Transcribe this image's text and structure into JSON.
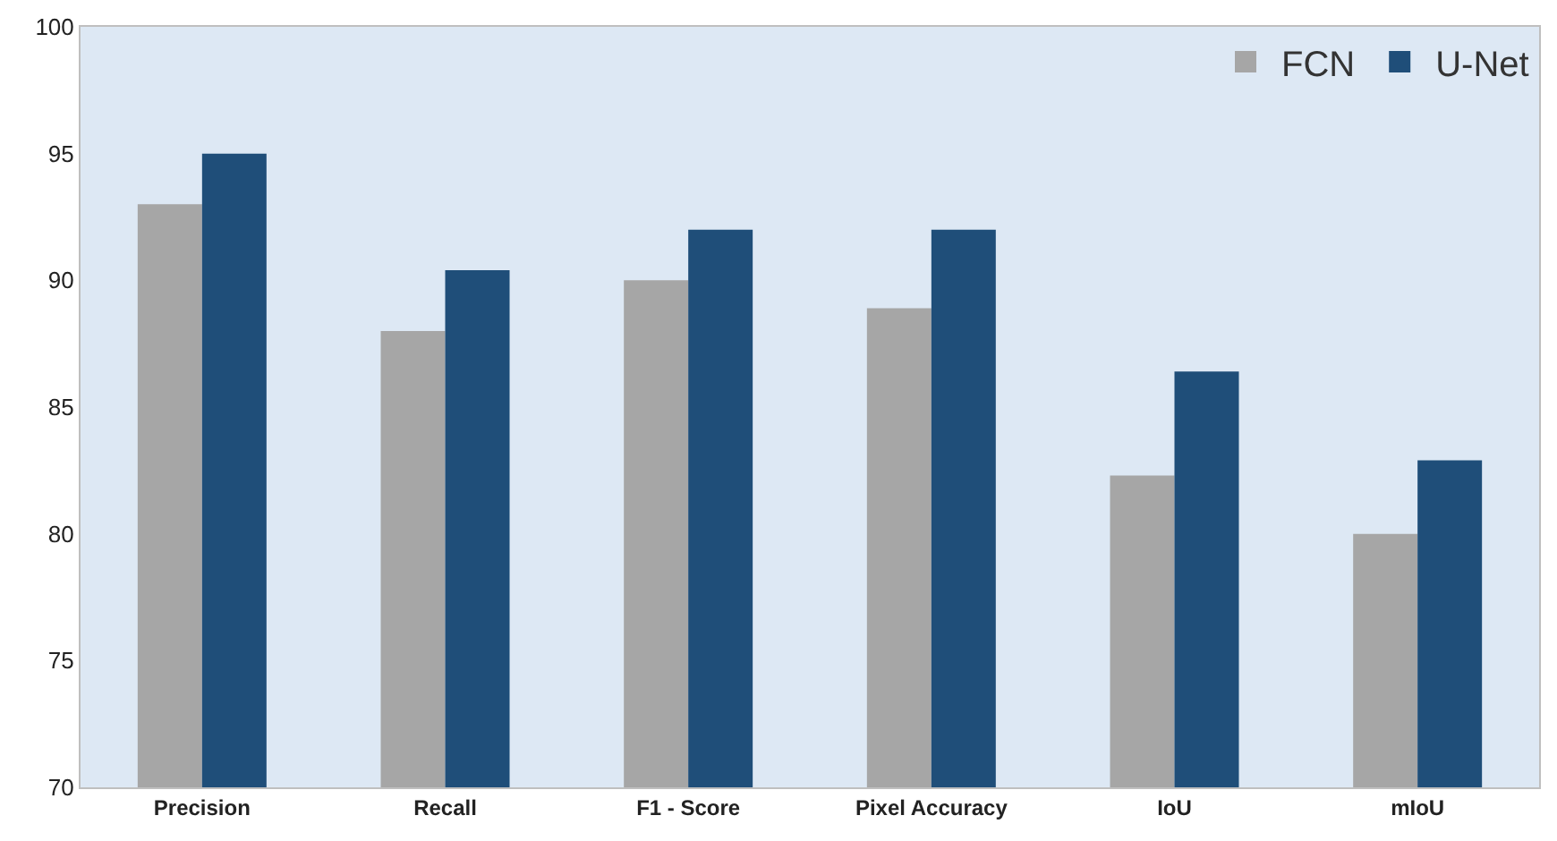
{
  "chart_data": {
    "type": "bar",
    "categories": [
      "Precision",
      "Recall",
      "F1 - Score",
      "Pixel Accuracy",
      "IoU",
      "mIoU"
    ],
    "series": [
      {
        "name": "FCN",
        "color": "#a6a6a6",
        "values": [
          93,
          88,
          90,
          88.9,
          82.3,
          80
        ]
      },
      {
        "name": "U-Net",
        "color": "#1f4e79",
        "values": [
          95,
          90.4,
          92,
          92,
          86.4,
          82.9
        ]
      }
    ],
    "ylim": [
      70,
      100
    ],
    "yticks": [
      70,
      75,
      80,
      85,
      90,
      95,
      100
    ],
    "grid": false,
    "legend": "top right"
  }
}
